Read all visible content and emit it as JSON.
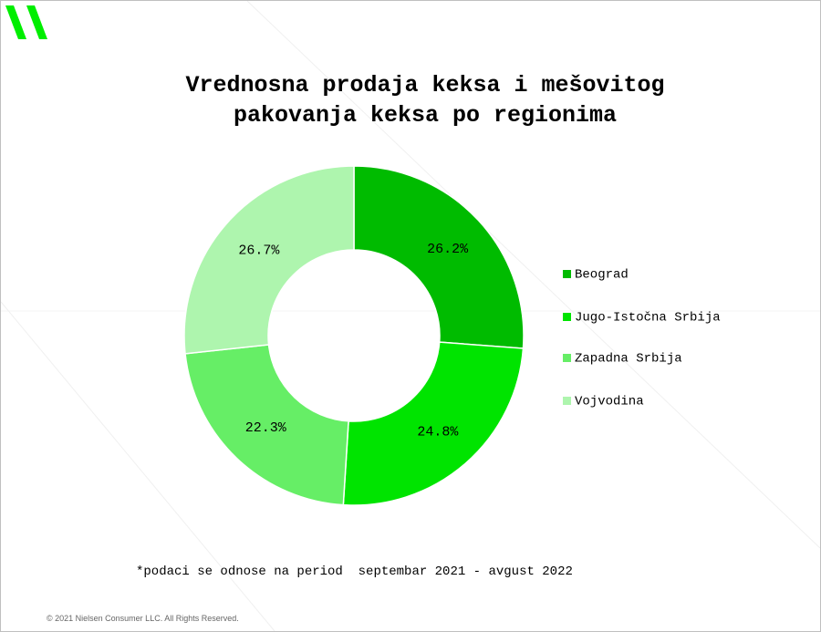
{
  "chart_data": {
    "type": "donut",
    "title": "Vrednosna prodaja keksa i mešovitog pakovanja keksa po regionima",
    "categories": [
      "Beograd",
      "Jugo-Istočna Srbija",
      "Zapadna Srbija",
      "Vojvodina"
    ],
    "values": [
      26.2,
      24.8,
      22.3,
      26.7
    ],
    "value_labels": [
      "26.2%",
      "24.8%",
      "22.3%",
      "26.7%"
    ],
    "colors": [
      "#00bb00",
      "#00e400",
      "#66ee66",
      "#aef5ae"
    ],
    "legend": "right",
    "footnote": "*podaci se odnose na period  septembar 2021 - avgust 2022",
    "copyright": "© 2021 Nielsen Consumer LLC. All Rights Reserved."
  }
}
